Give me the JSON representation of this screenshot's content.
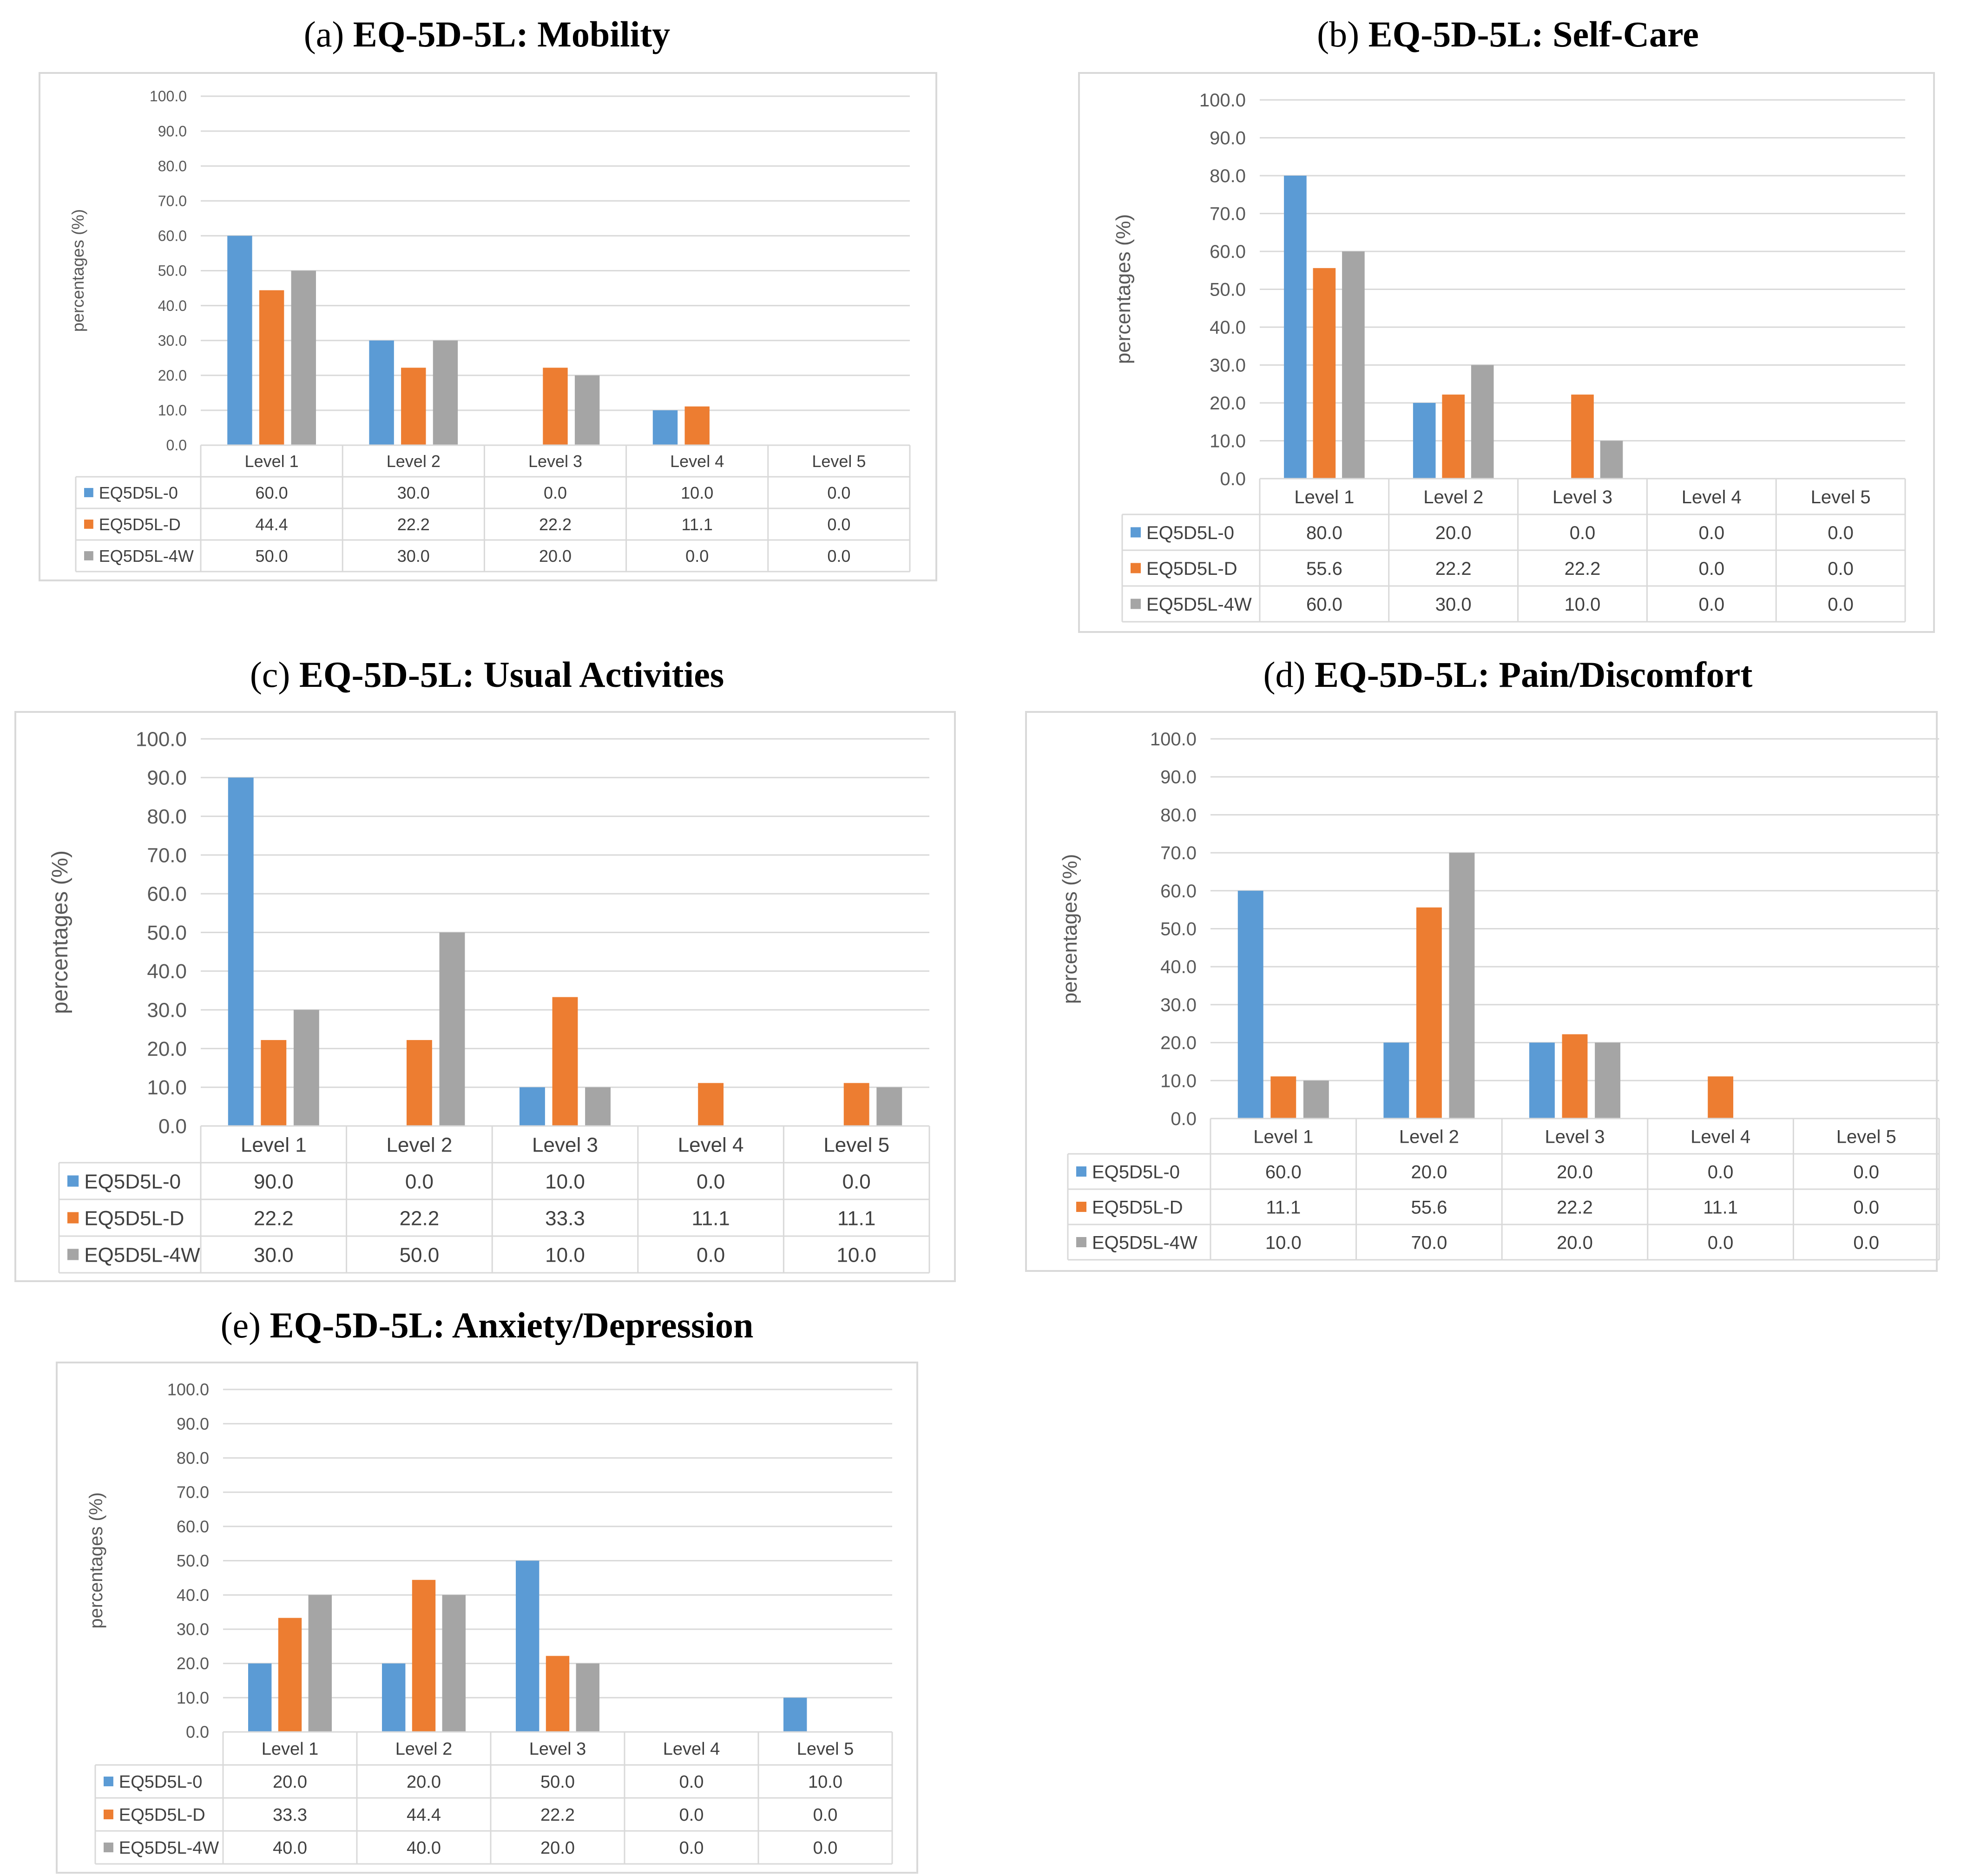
{
  "chart_data": [
    {
      "type": "bar",
      "label": "(a)",
      "title": "EQ-5D-5L: Mobility",
      "ylabel": "percentages (%)",
      "ylim": [
        0,
        100
      ],
      "yticks": [
        "0.0",
        "10.0",
        "20.0",
        "30.0",
        "40.0",
        "50.0",
        "60.0",
        "70.0",
        "80.0",
        "90.0",
        "100.0"
      ],
      "categories": [
        "Level 1",
        "Level 2",
        "Level 3",
        "Level 4",
        "Level 5"
      ],
      "series": [
        {
          "name": "EQ5D5L-0",
          "values": [
            60.0,
            30.0,
            0.0,
            10.0,
            0.0
          ],
          "labels": [
            "60.0",
            "30.0",
            "0.0",
            "10.0",
            "0.0"
          ]
        },
        {
          "name": "EQ5D5L-D",
          "values": [
            44.4,
            22.2,
            22.2,
            11.1,
            0.0
          ],
          "labels": [
            "44.4",
            "22.2",
            "22.2",
            "11.1",
            "0.0"
          ]
        },
        {
          "name": "EQ5D5L-4W",
          "values": [
            50.0,
            30.0,
            20.0,
            0.0,
            0.0
          ],
          "labels": [
            "50.0",
            "30.0",
            "20.0",
            "0.0",
            "0.0"
          ]
        }
      ]
    },
    {
      "type": "bar",
      "label": "(b)",
      "title": "EQ-5D-5L: Self-Care",
      "ylabel": "percentages (%)",
      "ylim": [
        0,
        100
      ],
      "yticks": [
        "0.0",
        "10.0",
        "20.0",
        "30.0",
        "40.0",
        "50.0",
        "60.0",
        "70.0",
        "80.0",
        "90.0",
        "100.0"
      ],
      "categories": [
        "Level 1",
        "Level 2",
        "Level 3",
        "Level 4",
        "Level 5"
      ],
      "series": [
        {
          "name": "EQ5D5L-0",
          "values": [
            80.0,
            20.0,
            0.0,
            0.0,
            0.0
          ],
          "labels": [
            "80.0",
            "20.0",
            "0.0",
            "0.0",
            "0.0"
          ]
        },
        {
          "name": "EQ5D5L-D",
          "values": [
            55.6,
            22.2,
            22.2,
            0.0,
            0.0
          ],
          "labels": [
            "55.6",
            "22.2",
            "22.2",
            "0.0",
            "0.0"
          ]
        },
        {
          "name": "EQ5D5L-4W",
          "values": [
            60.0,
            30.0,
            10.0,
            0.0,
            0.0
          ],
          "labels": [
            "60.0",
            "30.0",
            "10.0",
            "0.0",
            "0.0"
          ]
        }
      ]
    },
    {
      "type": "bar",
      "label": "(c)",
      "title": "EQ-5D-5L: Usual Activities",
      "ylabel": "percentages (%)",
      "ylim": [
        0,
        100
      ],
      "yticks": [
        "0.0",
        "10.0",
        "20.0",
        "30.0",
        "40.0",
        "50.0",
        "60.0",
        "70.0",
        "80.0",
        "90.0",
        "100.0"
      ],
      "categories": [
        "Level 1",
        "Level 2",
        "Level 3",
        "Level 4",
        "Level 5"
      ],
      "series": [
        {
          "name": "EQ5D5L-0",
          "values": [
            90.0,
            0.0,
            10.0,
            0.0,
            0.0
          ],
          "labels": [
            "90.0",
            "0.0",
            "10.0",
            "0.0",
            "0.0"
          ]
        },
        {
          "name": "EQ5D5L-D",
          "values": [
            22.2,
            22.2,
            33.3,
            11.1,
            11.1
          ],
          "labels": [
            "22.2",
            "22.2",
            "33.3",
            "11.1",
            "11.1"
          ]
        },
        {
          "name": "EQ5D5L-4W",
          "values": [
            30.0,
            50.0,
            10.0,
            0.0,
            10.0
          ],
          "labels": [
            "30.0",
            "50.0",
            "10.0",
            "0.0",
            "10.0"
          ]
        }
      ]
    },
    {
      "type": "bar",
      "label": "(d)",
      "title": "EQ-5D-5L: Pain/Discomfort",
      "ylabel": "percentages (%)",
      "ylim": [
        0,
        100
      ],
      "yticks": [
        "0.0",
        "10.0",
        "20.0",
        "30.0",
        "40.0",
        "50.0",
        "60.0",
        "70.0",
        "80.0",
        "90.0",
        "100.0"
      ],
      "categories": [
        "Level 1",
        "Level 2",
        "Level 3",
        "Level 4",
        "Level 5"
      ],
      "series": [
        {
          "name": "EQ5D5L-0",
          "values": [
            60.0,
            20.0,
            20.0,
            0.0,
            0.0
          ],
          "labels": [
            "60.0",
            "20.0",
            "20.0",
            "0.0",
            "0.0"
          ]
        },
        {
          "name": "EQ5D5L-D",
          "values": [
            11.1,
            55.6,
            22.2,
            11.1,
            0.0
          ],
          "labels": [
            "11.1",
            "55.6",
            "22.2",
            "11.1",
            "0.0"
          ]
        },
        {
          "name": "EQ5D5L-4W",
          "values": [
            10.0,
            70.0,
            20.0,
            0.0,
            0.0
          ],
          "labels": [
            "10.0",
            "70.0",
            "20.0",
            "0.0",
            "0.0"
          ]
        }
      ]
    },
    {
      "type": "bar",
      "label": "(e)",
      "title": "EQ-5D-5L: Anxiety/Depression",
      "ylabel": "percentages (%)",
      "ylim": [
        0,
        100
      ],
      "yticks": [
        "0.0",
        "10.0",
        "20.0",
        "30.0",
        "40.0",
        "50.0",
        "60.0",
        "70.0",
        "80.0",
        "90.0",
        "100.0"
      ],
      "categories": [
        "Level 1",
        "Level 2",
        "Level 3",
        "Level 4",
        "Level 5"
      ],
      "series": [
        {
          "name": "EQ5D5L-0",
          "values": [
            20.0,
            20.0,
            50.0,
            0.0,
            10.0
          ],
          "labels": [
            "20.0",
            "20.0",
            "50.0",
            "0.0",
            "10.0"
          ]
        },
        {
          "name": "EQ5D5L-D",
          "values": [
            33.3,
            44.4,
            22.2,
            0.0,
            0.0
          ],
          "labels": [
            "33.3",
            "44.4",
            "22.2",
            "0.0",
            "0.0"
          ]
        },
        {
          "name": "EQ5D5L-4W",
          "values": [
            40.0,
            40.0,
            20.0,
            0.0,
            0.0
          ],
          "labels": [
            "40.0",
            "40.0",
            "20.0",
            "0.0",
            "0.0"
          ]
        }
      ]
    }
  ],
  "colors": {
    "series": [
      "#5b9bd5",
      "#ed7d31",
      "#a5a5a5"
    ],
    "grid": "#d9d9d9",
    "frame": "#d9d9d9",
    "text": "#595959"
  }
}
